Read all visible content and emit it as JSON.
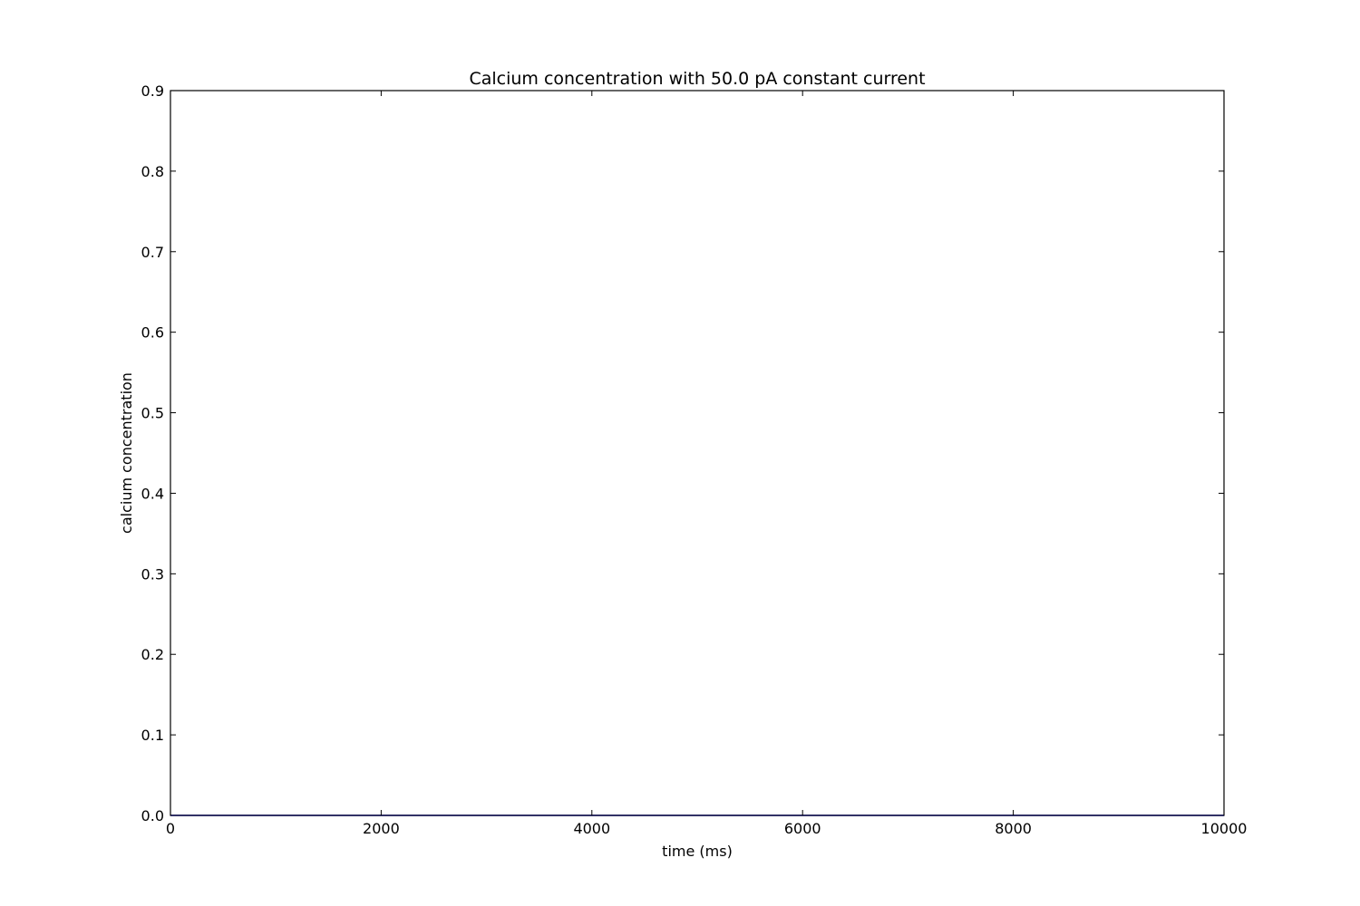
{
  "chart_data": {
    "type": "line",
    "title": "Calcium concentration with 50.0 pA constant current",
    "xlabel": "time (ms)",
    "ylabel": "calcium concentration",
    "xlim": [
      0,
      10000
    ],
    "ylim": [
      0,
      0.9
    ],
    "x_ticks": [
      "0",
      "2000",
      "4000",
      "6000",
      "8000",
      "10000"
    ],
    "y_ticks": [
      "0.0",
      "0.1",
      "0.2",
      "0.3",
      "0.4",
      "0.5",
      "0.6",
      "0.7",
      "0.8",
      "0.9"
    ],
    "grid": false,
    "series": [
      {
        "color": "#0000ff",
        "x": [
          0,
          10000
        ],
        "y": [
          0,
          0
        ]
      }
    ]
  },
  "colors": {
    "background": "#ffffff",
    "axes": "#000000",
    "series_line": "#0000ff"
  }
}
